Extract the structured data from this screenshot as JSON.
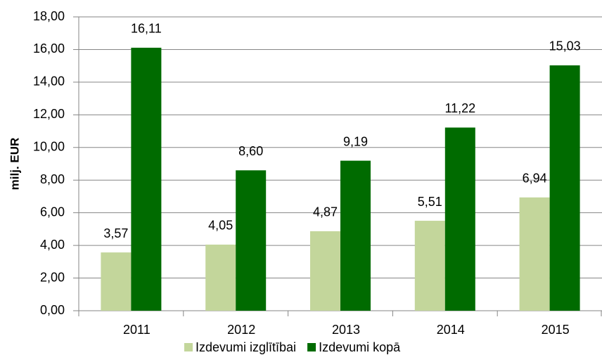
{
  "chart_data": {
    "type": "bar",
    "y_label": "milj. EUR",
    "categories": [
      "2011",
      "2012",
      "2013",
      "2014",
      "2015"
    ],
    "series": [
      {
        "name": "Izdevumi izglītībai",
        "color": "#c3d69b",
        "values": [
          3.57,
          4.05,
          4.87,
          5.51,
          6.94
        ],
        "value_labels": [
          "3,57",
          "4,05",
          "4,87",
          "5,51",
          "6,94"
        ]
      },
      {
        "name": "Izdevumi kopā",
        "color": "#006b00",
        "values": [
          16.11,
          8.6,
          9.19,
          11.22,
          15.03
        ],
        "value_labels": [
          "16,11",
          "8,60",
          "9,19",
          "11,22",
          "15,03"
        ]
      }
    ],
    "ylim": [
      0,
      18
    ],
    "yticks": [
      {
        "value": 0,
        "label": "0,00"
      },
      {
        "value": 2,
        "label": "2,00"
      },
      {
        "value": 4,
        "label": "4,00"
      },
      {
        "value": 6,
        "label": "6,00"
      },
      {
        "value": 8,
        "label": "8,00"
      },
      {
        "value": 10,
        "label": "10,00"
      },
      {
        "value": 12,
        "label": "12,00"
      },
      {
        "value": 14,
        "label": "14,00"
      },
      {
        "value": 16,
        "label": "16,00"
      },
      {
        "value": 18,
        "label": "18,00"
      }
    ],
    "grid": true,
    "legend": "bottom"
  }
}
